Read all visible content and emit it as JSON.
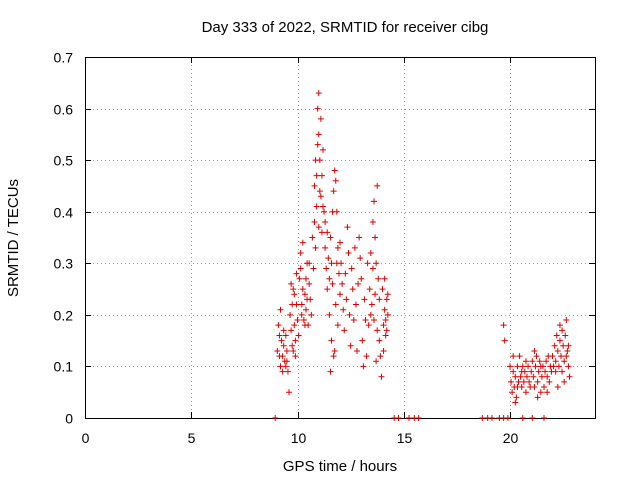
{
  "chart_data": {
    "type": "scatter",
    "title": "Day 333 of 2022, SRMTID for receiver cibg",
    "xlabel": "GPS time / hours",
    "ylabel": "SRMTID / TECUs",
    "xlim": [
      0,
      24
    ],
    "ylim": [
      0,
      0.7
    ],
    "x_ticks": [
      0,
      5,
      10,
      15,
      20
    ],
    "y_ticks": [
      0,
      0.1,
      0.2,
      0.3,
      0.4,
      0.5,
      0.6,
      0.7
    ],
    "grid": true,
    "marker": "plus",
    "marker_color": "#e00000",
    "series": [
      {
        "name": "SRMTID",
        "points": [
          [
            8.95,
            0.0
          ],
          [
            14.55,
            0.0
          ],
          [
            14.75,
            0.0
          ],
          [
            15.25,
            0.0
          ],
          [
            15.5,
            0.0
          ],
          [
            15.7,
            0.0
          ],
          [
            18.7,
            0.0
          ],
          [
            18.95,
            0.0
          ],
          [
            19.15,
            0.0
          ],
          [
            19.5,
            0.0
          ],
          [
            19.7,
            0.0
          ],
          [
            19.9,
            0.0
          ],
          [
            20.6,
            0.0
          ],
          [
            21.05,
            0.0
          ],
          [
            21.6,
            0.0
          ],
          [
            9.05,
            0.13
          ],
          [
            9.1,
            0.18
          ],
          [
            9.15,
            0.12
          ],
          [
            9.2,
            0.1
          ],
          [
            9.25,
            0.15
          ],
          [
            9.3,
            0.09
          ],
          [
            9.35,
            0.14
          ],
          [
            9.4,
            0.11
          ],
          [
            9.45,
            0.16
          ],
          [
            9.5,
            0.13
          ],
          [
            9.55,
            0.09
          ],
          [
            9.6,
            0.05
          ],
          [
            9.2,
            0.21
          ],
          [
            9.35,
            0.17
          ],
          [
            9.5,
            0.11
          ],
          [
            9.15,
            0.16
          ],
          [
            9.3,
            0.12
          ],
          [
            9.45,
            0.1
          ],
          [
            9.65,
            0.2
          ],
          [
            9.7,
            0.26
          ],
          [
            9.75,
            0.22
          ],
          [
            9.8,
            0.25
          ],
          [
            9.85,
            0.18
          ],
          [
            9.9,
            0.15
          ],
          [
            9.95,
            0.22
          ],
          [
            10.0,
            0.19
          ],
          [
            9.75,
            0.14
          ],
          [
            9.85,
            0.24
          ],
          [
            9.7,
            0.17
          ],
          [
            9.9,
            0.12
          ],
          [
            10.05,
            0.16
          ],
          [
            9.8,
            0.13
          ],
          [
            9.95,
            0.28
          ],
          [
            10.1,
            0.27
          ],
          [
            10.15,
            0.32
          ],
          [
            10.2,
            0.22
          ],
          [
            10.25,
            0.25
          ],
          [
            10.3,
            0.19
          ],
          [
            10.35,
            0.24
          ],
          [
            10.4,
            0.21
          ],
          [
            10.45,
            0.3
          ],
          [
            10.5,
            0.18
          ],
          [
            10.55,
            0.26
          ],
          [
            10.6,
            0.23
          ],
          [
            10.65,
            0.2
          ],
          [
            10.7,
            0.35
          ],
          [
            10.75,
            0.29
          ],
          [
            10.8,
            0.38
          ],
          [
            10.15,
            0.29
          ],
          [
            10.25,
            0.34
          ],
          [
            10.35,
            0.18
          ],
          [
            10.45,
            0.23
          ],
          [
            10.55,
            0.3
          ],
          [
            10.2,
            0.2
          ],
          [
            10.4,
            0.27
          ],
          [
            10.8,
            0.45
          ],
          [
            10.85,
            0.5
          ],
          [
            10.9,
            0.47
          ],
          [
            10.95,
            0.53
          ],
          [
            10.95,
            0.6
          ],
          [
            11.0,
            0.63
          ],
          [
            11.0,
            0.55
          ],
          [
            11.05,
            0.5
          ],
          [
            11.1,
            0.58
          ],
          [
            11.1,
            0.43
          ],
          [
            11.15,
            0.47
          ],
          [
            11.2,
            0.52
          ],
          [
            11.25,
            0.4
          ],
          [
            10.9,
            0.41
          ],
          [
            11.05,
            0.44
          ],
          [
            11.15,
            0.36
          ],
          [
            11.2,
            0.41
          ],
          [
            10.85,
            0.33
          ],
          [
            11.0,
            0.37
          ],
          [
            11.3,
            0.38
          ],
          [
            11.3,
            0.33
          ],
          [
            11.35,
            0.29
          ],
          [
            11.4,
            0.36
          ],
          [
            11.45,
            0.31
          ],
          [
            11.5,
            0.27
          ],
          [
            11.55,
            0.35
          ],
          [
            11.6,
            0.3
          ],
          [
            11.65,
            0.26
          ],
          [
            11.7,
            0.44
          ],
          [
            11.75,
            0.48
          ],
          [
            11.8,
            0.46
          ],
          [
            11.85,
            0.4
          ],
          [
            11.9,
            0.33
          ],
          [
            11.95,
            0.28
          ],
          [
            12.0,
            0.24
          ],
          [
            11.5,
            0.2
          ],
          [
            11.6,
            0.15
          ],
          [
            11.7,
            0.12
          ],
          [
            11.4,
            0.25
          ],
          [
            11.8,
            0.22
          ],
          [
            11.9,
            0.18
          ],
          [
            11.55,
            0.09
          ],
          [
            11.75,
            0.13
          ],
          [
            11.65,
            0.4
          ],
          [
            11.85,
            0.3
          ],
          [
            12.0,
            0.34
          ],
          [
            12.05,
            0.3
          ],
          [
            12.1,
            0.26
          ],
          [
            12.15,
            0.21
          ],
          [
            12.2,
            0.17
          ],
          [
            12.25,
            0.28
          ],
          [
            12.3,
            0.23
          ],
          [
            12.35,
            0.37
          ],
          [
            12.4,
            0.32
          ],
          [
            12.45,
            0.2
          ],
          [
            12.5,
            0.14
          ],
          [
            12.55,
            0.29
          ],
          [
            12.6,
            0.25
          ],
          [
            12.65,
            0.19
          ],
          [
            12.7,
            0.33
          ],
          [
            12.75,
            0.22
          ],
          [
            12.8,
            0.13
          ],
          [
            12.85,
            0.26
          ],
          [
            12.9,
            0.35
          ],
          [
            12.95,
            0.31
          ],
          [
            13.0,
            0.27
          ],
          [
            13.05,
            0.15
          ],
          [
            13.1,
            0.1
          ],
          [
            13.15,
            0.23
          ],
          [
            13.2,
            0.19
          ],
          [
            13.25,
            0.12
          ],
          [
            13.3,
            0.3
          ],
          [
            13.35,
            0.18
          ],
          [
            13.4,
            0.25
          ],
          [
            13.45,
            0.2
          ],
          [
            13.5,
            0.22
          ],
          [
            13.55,
            0.38
          ],
          [
            13.6,
            0.42
          ],
          [
            13.65,
            0.35
          ],
          [
            13.7,
            0.3
          ],
          [
            13.75,
            0.45
          ],
          [
            13.8,
            0.27
          ],
          [
            13.85,
            0.23
          ],
          [
            13.9,
            0.12
          ],
          [
            13.95,
            0.08
          ],
          [
            13.55,
            0.29
          ],
          [
            13.65,
            0.24
          ],
          [
            13.75,
            0.17
          ],
          [
            13.85,
            0.15
          ],
          [
            13.45,
            0.32
          ],
          [
            13.6,
            0.19
          ],
          [
            13.7,
            0.11
          ],
          [
            14.0,
            0.25
          ],
          [
            14.05,
            0.18
          ],
          [
            14.1,
            0.21
          ],
          [
            14.15,
            0.16
          ],
          [
            14.2,
            0.23
          ],
          [
            14.25,
            0.2
          ],
          [
            14.1,
            0.27
          ],
          [
            14.2,
            0.17
          ],
          [
            14.05,
            0.13
          ],
          [
            14.25,
            0.24
          ],
          [
            14.15,
            0.19
          ],
          [
            19.7,
            0.18
          ],
          [
            19.75,
            0.15
          ],
          [
            20.0,
            0.1
          ],
          [
            20.05,
            0.07
          ],
          [
            20.1,
            0.05
          ],
          [
            20.15,
            0.09
          ],
          [
            20.2,
            0.06
          ],
          [
            20.25,
            0.08
          ],
          [
            20.3,
            0.04
          ],
          [
            20.35,
            0.1
          ],
          [
            20.4,
            0.07
          ],
          [
            20.45,
            0.12
          ],
          [
            20.5,
            0.08
          ],
          [
            20.55,
            0.06
          ],
          [
            20.6,
            0.1
          ],
          [
            20.65,
            0.07
          ],
          [
            20.7,
            0.09
          ],
          [
            20.75,
            0.05
          ],
          [
            20.8,
            0.08
          ],
          [
            20.85,
            0.1
          ],
          [
            20.9,
            0.07
          ],
          [
            20.95,
            0.06
          ],
          [
            20.15,
            0.12
          ],
          [
            20.35,
            0.06
          ],
          [
            20.55,
            0.09
          ],
          [
            20.75,
            0.11
          ],
          [
            20.25,
            0.03
          ],
          [
            21.0,
            0.09
          ],
          [
            21.05,
            0.11
          ],
          [
            21.1,
            0.08
          ],
          [
            21.15,
            0.06
          ],
          [
            21.2,
            0.1
          ],
          [
            21.25,
            0.12
          ],
          [
            21.3,
            0.07
          ],
          [
            21.35,
            0.09
          ],
          [
            21.4,
            0.11
          ],
          [
            21.45,
            0.05
          ],
          [
            21.5,
            0.08
          ],
          [
            21.55,
            0.1
          ],
          [
            21.6,
            0.06
          ],
          [
            21.65,
            0.09
          ],
          [
            21.7,
            0.11
          ],
          [
            21.75,
            0.08
          ],
          [
            21.8,
            0.12
          ],
          [
            21.85,
            0.07
          ],
          [
            21.9,
            0.1
          ],
          [
            21.95,
            0.09
          ],
          [
            21.15,
            0.13
          ],
          [
            21.45,
            0.1
          ],
          [
            21.75,
            0.05
          ],
          [
            21.3,
            0.04
          ],
          [
            22.0,
            0.12
          ],
          [
            22.05,
            0.1
          ],
          [
            22.1,
            0.14
          ],
          [
            22.15,
            0.11
          ],
          [
            22.2,
            0.16
          ],
          [
            22.25,
            0.13
          ],
          [
            22.3,
            0.1
          ],
          [
            22.35,
            0.15
          ],
          [
            22.4,
            0.12
          ],
          [
            22.45,
            0.17
          ],
          [
            22.5,
            0.14
          ],
          [
            22.55,
            0.11
          ],
          [
            22.6,
            0.16
          ],
          [
            22.65,
            0.19
          ],
          [
            22.7,
            0.13
          ],
          [
            22.75,
            0.1
          ],
          [
            22.8,
            0.08
          ],
          [
            22.15,
            0.09
          ],
          [
            22.35,
            0.18
          ],
          [
            22.55,
            0.07
          ],
          [
            22.65,
            0.12
          ],
          [
            22.45,
            0.09
          ],
          [
            22.25,
            0.06
          ],
          [
            22.75,
            0.14
          ]
        ]
      }
    ]
  }
}
